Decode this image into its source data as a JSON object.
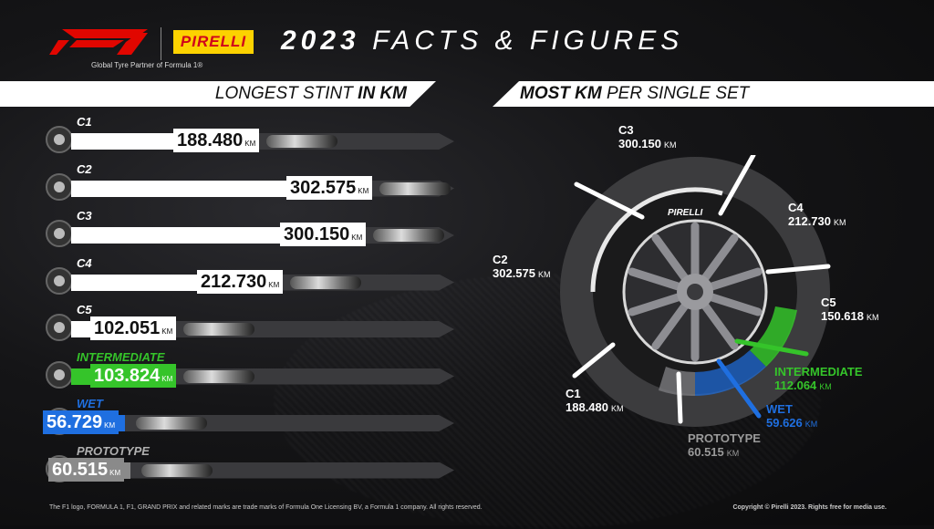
{
  "header": {
    "f1_logo_text": "F1",
    "pirelli_logo_text": "PIRELLI",
    "tagline": "Global Tyre Partner of Formula 1®",
    "title_bold": "2023",
    "title_light": "FACTS & FIGURES"
  },
  "left": {
    "heading_light": "LONGEST STINT ",
    "heading_bold": "IN KM",
    "unit": "KM",
    "rows": [
      {
        "label": "C1",
        "value": "188.480",
        "fill": 0.31,
        "color": "#ffffff",
        "label_color": "#ffffff"
      },
      {
        "label": "C2",
        "value": "302.575",
        "fill": 0.5,
        "color": "#ffffff",
        "label_color": "#ffffff"
      },
      {
        "label": "C3",
        "value": "300.150",
        "fill": 0.49,
        "color": "#ffffff",
        "label_color": "#ffffff"
      },
      {
        "label": "C4",
        "value": "212.730",
        "fill": 0.35,
        "color": "#ffffff",
        "label_color": "#ffffff"
      },
      {
        "label": "C5",
        "value": "102.051",
        "fill": 0.17,
        "color": "#ffffff",
        "label_color": "#ffffff"
      },
      {
        "label": "INTERMEDIATE",
        "value": "103.824",
        "fill": 0.17,
        "color": "#35c42a",
        "label_color": "#35c42a"
      },
      {
        "label": "WET",
        "value": "56.729",
        "fill": 0.09,
        "color": "#1f6fe0",
        "label_color": "#1f6fe0"
      },
      {
        "label": "PROTOTYPE",
        "value": "60.515",
        "fill": 0.1,
        "color": "#8a8a8a",
        "label_color": "#b0b0b0"
      }
    ]
  },
  "right": {
    "heading_bold": "MOST KM",
    "heading_light": " PER SINGLE SET",
    "unit": "KM",
    "wheel_brand": "PIRELLI",
    "labels": {
      "c3": {
        "name": "C3",
        "value": "300.150",
        "color": "#ffffff"
      },
      "c4": {
        "name": "C4",
        "value": "212.730",
        "color": "#ffffff"
      },
      "c2": {
        "name": "C2",
        "value": "302.575",
        "color": "#ffffff"
      },
      "c5": {
        "name": "C5",
        "value": "150.618",
        "color": "#ffffff"
      },
      "c1": {
        "name": "C1",
        "value": "188.480",
        "color": "#ffffff"
      },
      "inter": {
        "name": "INTERMEDIATE",
        "value": "112.064",
        "color": "#35c42a"
      },
      "wet": {
        "name": "WET",
        "value": "59.626",
        "color": "#1f6fe0"
      },
      "proto": {
        "name": "PROTOTYPE",
        "value": "60.515",
        "color": "#9a9a9a"
      }
    }
  },
  "footer": {
    "left": "The F1 logo, FORMULA 1, F1, GRAND PRIX and related marks are trade marks of Formula One Licensing BV, a Formula 1 company. All rights reserved.",
    "right": "Copyright © Pirelli 2023. Rights free for media use."
  }
}
